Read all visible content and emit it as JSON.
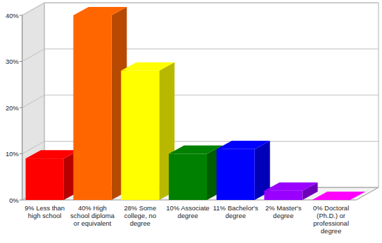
{
  "chart_data": {
    "type": "bar",
    "categories": [
      "9% Less than high school",
      "40% High school diploma or equivalent",
      "28% Some college, no degree",
      "10% Associate degree",
      "11% Bachelor's degree",
      "2% Master's degree",
      "0% Doctoral (Ph.D.) or professional degree"
    ],
    "values": [
      9,
      40,
      28,
      10,
      11,
      2,
      0
    ],
    "colors": [
      "#ff0000",
      "#ff6600",
      "#ffff00",
      "#008000",
      "#0000ff",
      "#9900ff",
      "#ff00ff"
    ],
    "ylim": [
      0,
      40
    ],
    "yticks": [
      {
        "value": 0,
        "label": "0%"
      },
      {
        "value": 10,
        "label": "10%"
      },
      {
        "value": 20,
        "label": "20%"
      },
      {
        "value": 30,
        "label": "30%"
      },
      {
        "value": 40,
        "label": "40%"
      }
    ],
    "grid": true
  }
}
